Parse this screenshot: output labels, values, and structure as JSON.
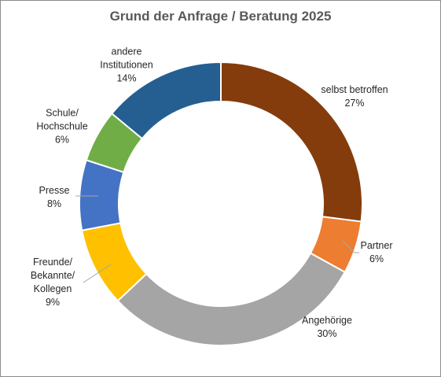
{
  "chart_data": {
    "type": "donut",
    "title": "Grund der Anfrage / Beratung 2025",
    "categories": [
      "selbst betroffen",
      "Partner",
      "Angehörige",
      "Freunde/\nBekannte/\nKollegen",
      "Presse",
      "Schule/\nHochschule",
      "andere\nInstitutionen"
    ],
    "values": [
      27,
      6,
      30,
      9,
      8,
      6,
      14
    ],
    "value_labels": [
      "27%",
      "6%",
      "30%",
      "9%",
      "8%",
      "6%",
      "14%"
    ],
    "colors": [
      "#843c0c",
      "#ed7d31",
      "#a5a5a5",
      "#ffc000",
      "#4472c4",
      "#70ad47",
      "#255e91"
    ]
  }
}
